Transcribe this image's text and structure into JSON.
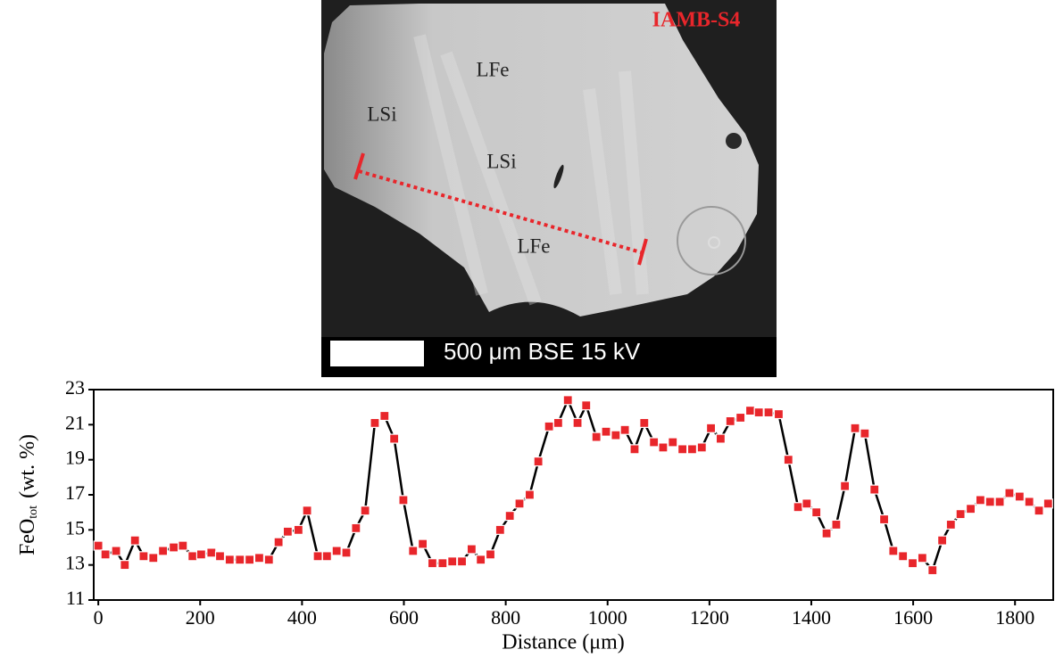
{
  "image": {
    "title": "IAMB-S4",
    "labels": [
      "LFe",
      "LSi",
      "LSi",
      "LFe"
    ],
    "scale_bar": "500 μm BSE 15 kV"
  },
  "chart_data": {
    "type": "line",
    "xlabel": "Distance (μm)",
    "ylabel": "FeO",
    "ylabel_sub": "tot",
    "ylabel_unit": "(wt. %)",
    "xlim": [
      -9,
      1875
    ],
    "ylim": [
      11,
      23
    ],
    "xticks": [
      0,
      200,
      400,
      600,
      800,
      1000,
      1200,
      1400,
      1600,
      1800
    ],
    "yticks": [
      11,
      13,
      15,
      17,
      19,
      21,
      23
    ],
    "series": [
      {
        "color": "#e8262b",
        "x": [
          0,
          14,
          35,
          52,
          72,
          89,
          108,
          127,
          148,
          166,
          185,
          202,
          222,
          239,
          258,
          278,
          297,
          316,
          335,
          354,
          372,
          393,
          410,
          431,
          449,
          468,
          487,
          506,
          524,
          543,
          562,
          581,
          599,
          618,
          637,
          656,
          676,
          695,
          714,
          733,
          751,
          770,
          789,
          808,
          827,
          847,
          864,
          885,
          903,
          922,
          941,
          958,
          978,
          997,
          1016,
          1034,
          1053,
          1072,
          1091,
          1109,
          1128,
          1147,
          1166,
          1185,
          1203,
          1222,
          1241,
          1261,
          1280,
          1297,
          1316,
          1336,
          1355,
          1374,
          1391,
          1410,
          1430,
          1449,
          1466,
          1486,
          1505,
          1524,
          1543,
          1561,
          1580,
          1599,
          1618,
          1638,
          1657,
          1674,
          1693,
          1713,
          1732,
          1751,
          1770,
          1789,
          1809,
          1828,
          1847,
          1865
        ],
        "values": [
          14.1,
          13.6,
          13.8,
          13.0,
          14.4,
          13.5,
          13.4,
          13.8,
          14.0,
          14.1,
          13.5,
          13.6,
          13.7,
          13.5,
          13.3,
          13.3,
          13.3,
          13.4,
          13.3,
          14.3,
          14.9,
          15.0,
          16.1,
          13.5,
          13.5,
          13.8,
          13.7,
          15.1,
          16.1,
          21.1,
          21.5,
          20.2,
          16.7,
          13.8,
          14.2,
          13.1,
          13.1,
          13.2,
          13.2,
          13.9,
          13.3,
          13.6,
          15.0,
          15.8,
          16.5,
          17.0,
          18.9,
          20.9,
          21.1,
          22.4,
          21.1,
          22.1,
          20.3,
          20.6,
          20.4,
          20.7,
          19.6,
          21.1,
          20.0,
          19.7,
          20.0,
          19.6,
          19.6,
          19.7,
          20.8,
          20.2,
          21.2,
          21.4,
          21.8,
          21.7,
          21.7,
          21.6,
          19.0,
          16.3,
          16.5,
          16.0,
          14.8,
          15.3,
          17.5,
          20.8,
          20.5,
          17.3,
          15.6,
          13.8,
          13.5,
          13.1,
          13.4,
          12.7,
          14.4,
          15.3,
          15.9,
          16.2,
          16.7,
          16.6,
          16.6,
          17.1,
          16.9,
          16.6,
          16.1,
          16.5
        ]
      }
    ]
  }
}
